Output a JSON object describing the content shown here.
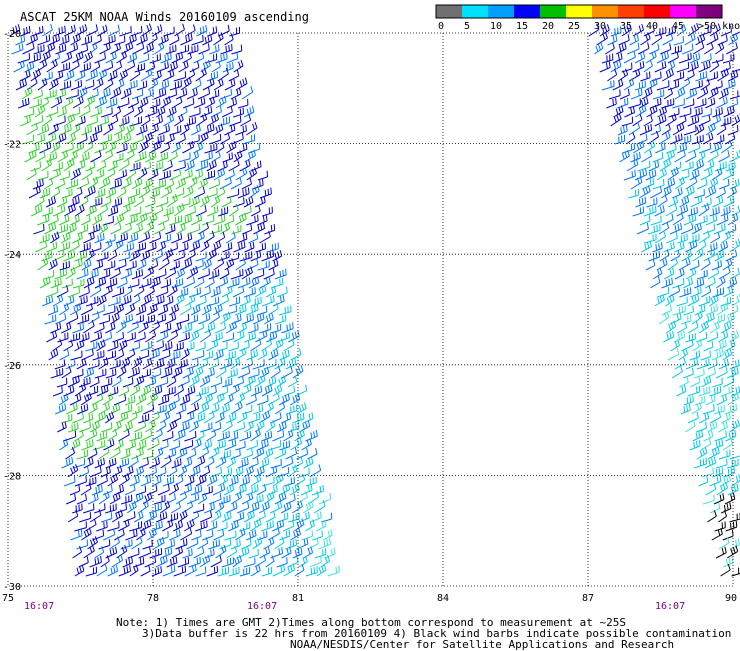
{
  "title": "ASCAT 25KM NOAA Winds 20160109 ascending",
  "legend": {
    "labels": [
      "0",
      "5",
      "10",
      "15",
      "20",
      "25",
      "30",
      "35",
      "40",
      "45",
      ">50 knots"
    ],
    "colors": [
      "#707070",
      "#00e0ff",
      "#00a0ff",
      "#0000ff",
      "#00c000",
      "#ffff00",
      "#ff9000",
      "#ff4000",
      "#ff0000",
      "#ff00ff",
      "#800080"
    ]
  },
  "map": {
    "lat_labels": [
      "-20",
      "-22",
      "-24",
      "-26",
      "-28",
      "-30"
    ],
    "lon_labels": [
      "75",
      "78",
      "81",
      "84",
      "87",
      "90"
    ],
    "time_labels": [
      "16:07",
      "16:07",
      "16:07"
    ],
    "barb_colors": {
      "light_cyan": "#40e0e0",
      "cyan": "#00c8e8",
      "mid_blue": "#0078ff",
      "blue": "#0000d0",
      "green": "#30d030",
      "black": "#000000"
    },
    "grid": "dotted"
  },
  "notes": {
    "line1": "Note: 1) Times are GMT 2)Times along bottom correspond to measurement at ~25S",
    "line2": "3)Data buffer is 22 hrs from 20160109 4) Black wind barbs indicate possible contamination",
    "line3": "NOAA/NESDIS/Center for Satellite Applications and Research"
  }
}
